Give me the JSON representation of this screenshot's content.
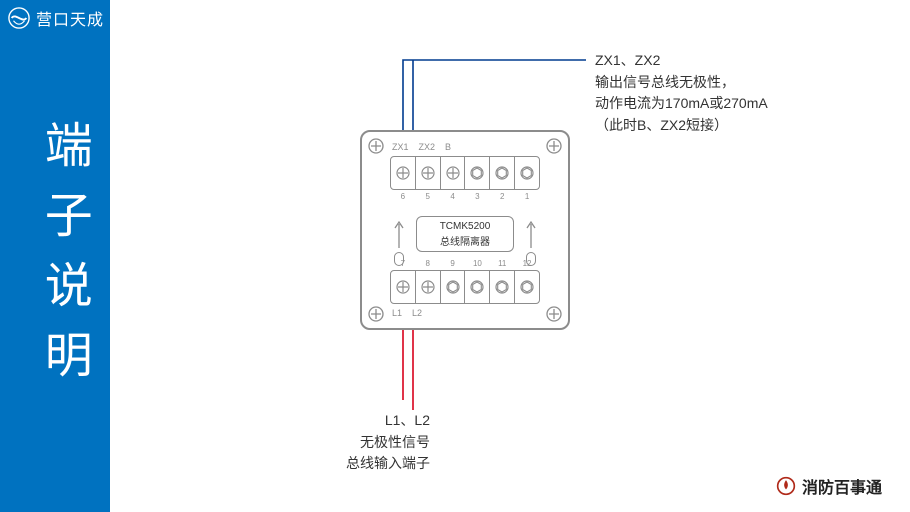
{
  "brand_top": "营口天成",
  "side_title": "端子说明",
  "footer_brand": "消防百事通",
  "device": {
    "model": "TCMK5200",
    "subtitle": "总线隔离器",
    "top_pin_labels": [
      "ZX1",
      "ZX2",
      "B"
    ],
    "bot_pin_labels": [
      "L1",
      "L2"
    ],
    "top_numbers": [
      "6",
      "5",
      "4",
      "3",
      "2",
      "1"
    ],
    "bot_numbers": [
      "7",
      "8",
      "9",
      "10",
      "11",
      "12"
    ],
    "top_screw_type": [
      "cross",
      "cross",
      "cross",
      "hex",
      "hex",
      "hex"
    ],
    "bot_screw_type": [
      "cross",
      "cross",
      "hex",
      "hex",
      "hex",
      "hex"
    ]
  },
  "annotations": {
    "zx": {
      "line1": "ZX1、ZX2",
      "line2": "输出信号总线无极性，",
      "line3": "动作电流为170mA或270mA",
      "line4": "（此时B、ZX2短接）"
    },
    "l": {
      "line1": "L1、L2",
      "line2": "无极性信号",
      "line3": "总线输入端子"
    }
  },
  "colors": {
    "sidebar": "#0072c0",
    "device_stroke": "#8c8c8c",
    "wire_blue": "#003b8f",
    "wire_red": "#d9001b",
    "text": "#333333"
  }
}
